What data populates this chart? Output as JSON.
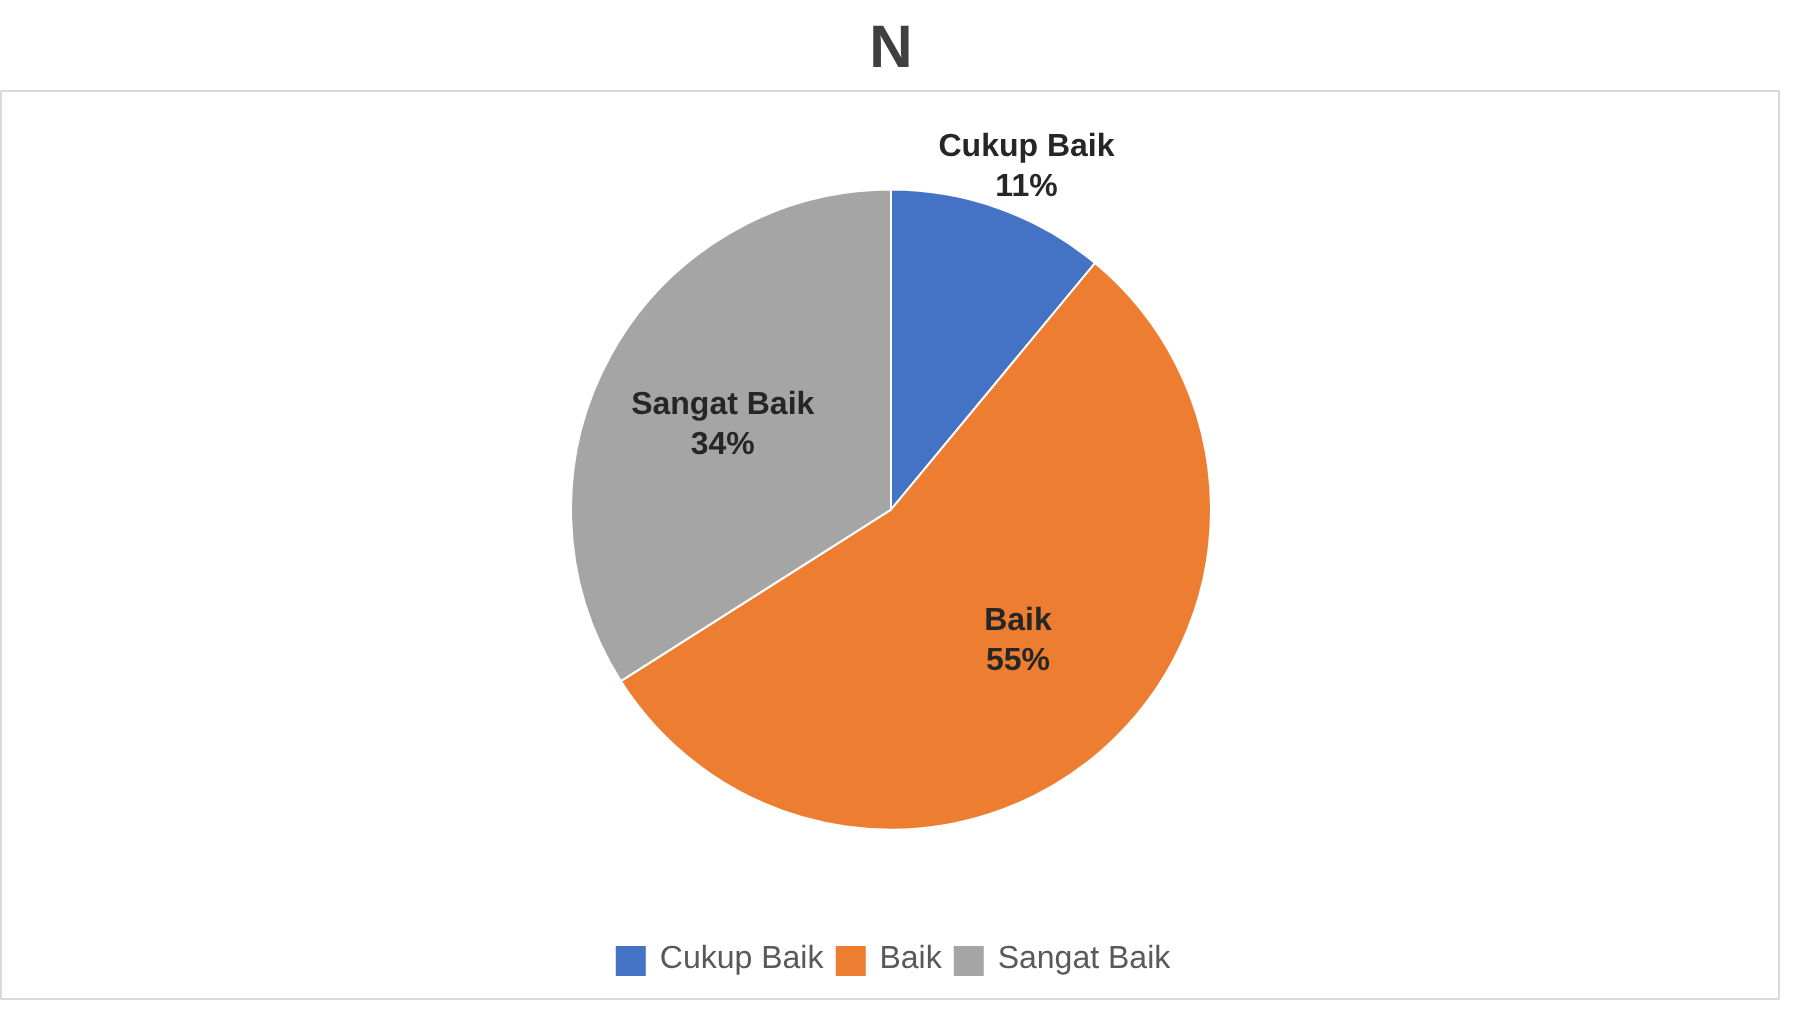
{
  "chart_data": {
    "type": "pie",
    "title": "N",
    "categories": [
      "Cukup Baik",
      "Baik",
      "Sangat Baik"
    ],
    "values": [
      11,
      55,
      34
    ],
    "colors": [
      "#4472c4",
      "#ed7d31",
      "#a5a5a5"
    ],
    "value_labels": [
      "11%",
      "55%",
      "34%"
    ],
    "legend": "bottom"
  }
}
